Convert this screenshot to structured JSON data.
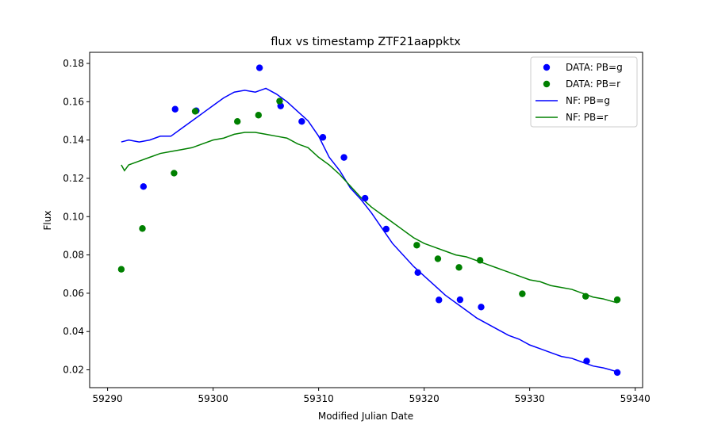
{
  "chart_data": {
    "type": "scatter",
    "title": "flux vs timestamp ZTF21aappktx",
    "xlabel": "Modified Julian Date",
    "ylabel": "Flux",
    "xlim": [
      59288.3,
      59340.7
    ],
    "ylim": [
      0.0107,
      0.1858
    ],
    "xticks": [
      59290,
      59300,
      59310,
      59320,
      59330,
      59340
    ],
    "yticks": [
      0.02,
      0.04,
      0.06,
      0.08,
      0.1,
      0.12,
      0.14,
      0.16,
      0.18
    ],
    "legend_position": "top-right",
    "grid": false,
    "series": [
      {
        "name": "DATA: PB=g",
        "kind": "scatter",
        "color": "#0000ff",
        "points": [
          [
            59293.4,
            0.1157
          ],
          [
            59296.4,
            0.1561
          ],
          [
            59298.4,
            0.1553
          ],
          [
            59304.4,
            0.1777
          ],
          [
            59306.4,
            0.1578
          ],
          [
            59308.4,
            0.1497
          ],
          [
            59310.4,
            0.1414
          ],
          [
            59312.4,
            0.1309
          ],
          [
            59314.4,
            0.1096
          ],
          [
            59316.4,
            0.0935
          ],
          [
            59319.4,
            0.0708
          ],
          [
            59321.4,
            0.0565
          ],
          [
            59323.4,
            0.0566
          ],
          [
            59325.4,
            0.0528
          ],
          [
            59335.4,
            0.0246
          ],
          [
            59338.3,
            0.0186
          ]
        ]
      },
      {
        "name": "DATA: PB=r",
        "kind": "scatter",
        "color": "#008000",
        "points": [
          [
            59291.3,
            0.0725
          ],
          [
            59293.3,
            0.0938
          ],
          [
            59296.3,
            0.1227
          ],
          [
            59298.3,
            0.155
          ],
          [
            59302.3,
            0.1497
          ],
          [
            59304.3,
            0.153
          ],
          [
            59306.3,
            0.1603
          ],
          [
            59319.3,
            0.0851
          ],
          [
            59321.3,
            0.078
          ],
          [
            59323.3,
            0.0735
          ],
          [
            59325.3,
            0.0772
          ],
          [
            59329.3,
            0.0597
          ],
          [
            59335.3,
            0.0584
          ],
          [
            59338.3,
            0.0566
          ]
        ]
      },
      {
        "name": "NF: PB=g",
        "kind": "line",
        "color": "#0000ff",
        "points": [
          [
            59291.3,
            0.139
          ],
          [
            59292,
            0.14
          ],
          [
            59293,
            0.139
          ],
          [
            59294,
            0.14
          ],
          [
            59295,
            0.142
          ],
          [
            59296,
            0.142
          ],
          [
            59297,
            0.146
          ],
          [
            59298,
            0.15
          ],
          [
            59299,
            0.154
          ],
          [
            59300,
            0.158
          ],
          [
            59301,
            0.162
          ],
          [
            59302,
            0.165
          ],
          [
            59303,
            0.166
          ],
          [
            59304,
            0.165
          ],
          [
            59305,
            0.167
          ],
          [
            59306,
            0.164
          ],
          [
            59307,
            0.16
          ],
          [
            59308,
            0.155
          ],
          [
            59309,
            0.15
          ],
          [
            59310,
            0.142
          ],
          [
            59311,
            0.131
          ],
          [
            59312,
            0.124
          ],
          [
            59313,
            0.115
          ],
          [
            59314,
            0.109
          ],
          [
            59315,
            0.102
          ],
          [
            59316,
            0.094
          ],
          [
            59317,
            0.086
          ],
          [
            59318,
            0.08
          ],
          [
            59319,
            0.074
          ],
          [
            59320,
            0.069
          ],
          [
            59321,
            0.064
          ],
          [
            59322,
            0.059
          ],
          [
            59323,
            0.055
          ],
          [
            59324,
            0.051
          ],
          [
            59325,
            0.047
          ],
          [
            59326,
            0.044
          ],
          [
            59327,
            0.041
          ],
          [
            59328,
            0.038
          ],
          [
            59329,
            0.036
          ],
          [
            59330,
            0.033
          ],
          [
            59331,
            0.031
          ],
          [
            59332,
            0.029
          ],
          [
            59333,
            0.027
          ],
          [
            59334,
            0.026
          ],
          [
            59335,
            0.024
          ],
          [
            59336,
            0.022
          ],
          [
            59337,
            0.021
          ],
          [
            59338.3,
            0.019
          ]
        ]
      },
      {
        "name": "NF: PB=r",
        "kind": "line",
        "color": "#008000",
        "points": [
          [
            59291.3,
            0.127
          ],
          [
            59291.6,
            0.124
          ],
          [
            59292,
            0.127
          ],
          [
            59293,
            0.129
          ],
          [
            59294,
            0.131
          ],
          [
            59295,
            0.133
          ],
          [
            59296,
            0.134
          ],
          [
            59297,
            0.135
          ],
          [
            59298,
            0.136
          ],
          [
            59299,
            0.138
          ],
          [
            59300,
            0.14
          ],
          [
            59301,
            0.141
          ],
          [
            59302,
            0.143
          ],
          [
            59303,
            0.144
          ],
          [
            59304,
            0.144
          ],
          [
            59305,
            0.143
          ],
          [
            59306,
            0.142
          ],
          [
            59307,
            0.141
          ],
          [
            59308,
            0.138
          ],
          [
            59309,
            0.136
          ],
          [
            59310,
            0.131
          ],
          [
            59311,
            0.127
          ],
          [
            59312,
            0.122
          ],
          [
            59313,
            0.116
          ],
          [
            59314,
            0.11
          ],
          [
            59315,
            0.105
          ],
          [
            59316,
            0.101
          ],
          [
            59317,
            0.097
          ],
          [
            59318,
            0.093
          ],
          [
            59319,
            0.089
          ],
          [
            59320,
            0.086
          ],
          [
            59321,
            0.084
          ],
          [
            59322,
            0.082
          ],
          [
            59323,
            0.08
          ],
          [
            59324,
            0.079
          ],
          [
            59325,
            0.077
          ],
          [
            59326,
            0.075
          ],
          [
            59327,
            0.073
          ],
          [
            59328,
            0.071
          ],
          [
            59329,
            0.069
          ],
          [
            59330,
            0.067
          ],
          [
            59331,
            0.066
          ],
          [
            59332,
            0.064
          ],
          [
            59333,
            0.063
          ],
          [
            59334,
            0.062
          ],
          [
            59335,
            0.06
          ],
          [
            59336,
            0.058
          ],
          [
            59337,
            0.057
          ],
          [
            59338.3,
            0.055
          ]
        ]
      }
    ]
  }
}
